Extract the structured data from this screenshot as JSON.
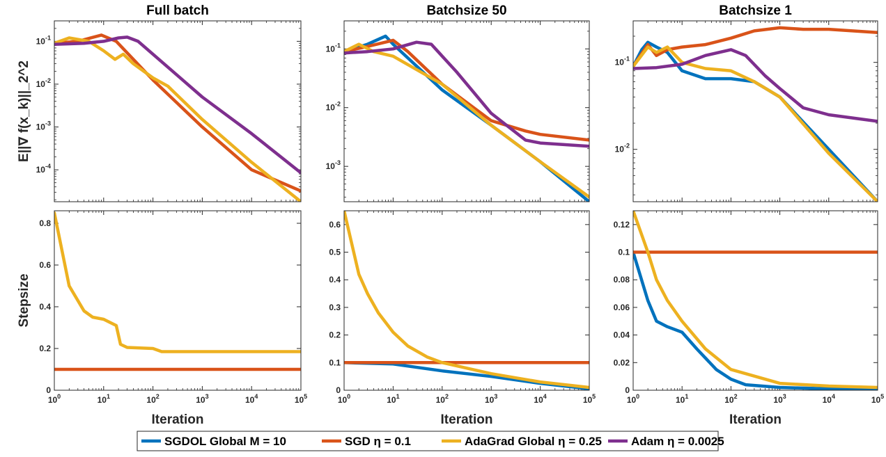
{
  "legend": [
    {
      "name": "SGDOL Global  M = 10",
      "color": "#0072BD"
    },
    {
      "name": "SGD  η = 0.1",
      "color": "#D95319"
    },
    {
      "name": "AdaGrad Global  η = 0.25",
      "color": "#EDB120"
    },
    {
      "name": "Adam  η = 0.0025",
      "color": "#7E2F8E"
    }
  ],
  "chart_data": [
    {
      "type": "line",
      "title": "Full batch",
      "xlabel": "",
      "ylabel": "E||∇ f(x_k)||_2^2",
      "xscale": "log",
      "yscale": "log",
      "xlim": [
        1,
        100000
      ],
      "ylim": [
        1.8e-05,
        0.3
      ],
      "yticks": [
        0.0001,
        0.001,
        0.01,
        0.1
      ],
      "ytick_labels": [
        "10^-4",
        "10^-3",
        "10^-2",
        "10^-1"
      ],
      "series": [
        {
          "name": "SGDOL Global  M = 10",
          "x": [],
          "y": []
        },
        {
          "name": "SGD  η = 0.1",
          "x": [
            1,
            3,
            9,
            18,
            100,
            1000,
            10000,
            100000
          ],
          "y": [
            0.09,
            0.1,
            0.14,
            0.1,
            0.0125,
            0.001,
            0.0001,
            3.2e-05
          ]
        },
        {
          "name": "AdaGrad Global  η = 0.25",
          "x": [
            1,
            2,
            5,
            10,
            17,
            25,
            40,
            100,
            200,
            1000,
            10000,
            100000
          ],
          "y": [
            0.09,
            0.12,
            0.1,
            0.06,
            0.038,
            0.05,
            0.03,
            0.014,
            0.009,
            0.0015,
            0.00015,
            1.8e-05
          ]
        },
        {
          "name": "Adam  η = 0.0025",
          "x": [
            1,
            4,
            10,
            20,
            30,
            50,
            100,
            1000,
            10000,
            100000
          ],
          "y": [
            0.085,
            0.09,
            0.1,
            0.12,
            0.125,
            0.1,
            0.05,
            0.005,
            0.0007,
            8.5e-05
          ]
        }
      ]
    },
    {
      "type": "line",
      "title": "Batchsize 50",
      "xlabel": "",
      "ylabel": "",
      "xscale": "log",
      "yscale": "log",
      "xlim": [
        1,
        100000
      ],
      "ylim": [
        0.00025,
        0.3
      ],
      "yticks": [
        0.001,
        0.01,
        0.1
      ],
      "ytick_labels": [
        "10^-3",
        "10^-2",
        "10^-1"
      ],
      "series": [
        {
          "name": "SGDOL Global  M = 10",
          "x": [
            1,
            3,
            7,
            10,
            20,
            100,
            1000,
            10000,
            100000
          ],
          "y": [
            0.09,
            0.12,
            0.165,
            0.12,
            0.07,
            0.02,
            0.005,
            0.0012,
            0.00025
          ]
        },
        {
          "name": "SGD  η = 0.1",
          "x": [
            1,
            3,
            10,
            20,
            100,
            1000,
            5000,
            10000,
            100000
          ],
          "y": [
            0.09,
            0.11,
            0.14,
            0.09,
            0.025,
            0.006,
            0.004,
            0.0035,
            0.0028
          ]
        },
        {
          "name": "AdaGrad Global  η = 0.25",
          "x": [
            1,
            2,
            4,
            10,
            100,
            1000,
            10000,
            100000
          ],
          "y": [
            0.09,
            0.12,
            0.09,
            0.075,
            0.025,
            0.005,
            0.0012,
            0.0003
          ]
        },
        {
          "name": "Adam  η = 0.0025",
          "x": [
            1,
            3,
            10,
            30,
            60,
            200,
            1000,
            5000,
            10000,
            100000
          ],
          "y": [
            0.085,
            0.09,
            0.1,
            0.13,
            0.12,
            0.04,
            0.008,
            0.0028,
            0.0025,
            0.0022
          ]
        }
      ]
    },
    {
      "type": "line",
      "title": "Batchsize 1",
      "xlabel": "",
      "ylabel": "",
      "xscale": "log",
      "yscale": "log",
      "xlim": [
        1,
        100000
      ],
      "ylim": [
        0.0025,
        0.3
      ],
      "yticks": [
        0.01,
        0.1
      ],
      "ytick_labels": [
        "10^-2",
        "10^-1"
      ],
      "series": [
        {
          "name": "SGDOL Global  M = 10",
          "x": [
            1,
            1.5,
            2,
            3,
            5,
            10,
            30,
            100,
            300,
            1000,
            10000,
            100000
          ],
          "y": [
            0.09,
            0.14,
            0.17,
            0.15,
            0.13,
            0.08,
            0.065,
            0.065,
            0.06,
            0.04,
            0.01,
            0.0025
          ]
        },
        {
          "name": "SGD  η = 0.1",
          "x": [
            1,
            2,
            3,
            5,
            10,
            30,
            100,
            300,
            1000,
            3000,
            10000,
            100000
          ],
          "y": [
            0.09,
            0.16,
            0.12,
            0.14,
            0.15,
            0.16,
            0.19,
            0.23,
            0.25,
            0.24,
            0.24,
            0.22
          ]
        },
        {
          "name": "AdaGrad Global  η = 0.25",
          "x": [
            1,
            2,
            3,
            5,
            10,
            30,
            100,
            300,
            1000,
            10000,
            100000
          ],
          "y": [
            0.09,
            0.15,
            0.13,
            0.15,
            0.1,
            0.085,
            0.08,
            0.06,
            0.04,
            0.009,
            0.0025
          ]
        },
        {
          "name": "Adam  η = 0.0025",
          "x": [
            1,
            3,
            10,
            30,
            100,
            200,
            500,
            1000,
            3000,
            10000,
            100000
          ],
          "y": [
            0.085,
            0.087,
            0.095,
            0.12,
            0.14,
            0.12,
            0.07,
            0.05,
            0.03,
            0.025,
            0.021
          ]
        }
      ]
    },
    {
      "type": "line",
      "title": "",
      "xlabel": "Iteration",
      "ylabel": "Stepsize",
      "xscale": "log",
      "yscale": "linear",
      "xlim": [
        1,
        100000
      ],
      "ylim": [
        0,
        0.86
      ],
      "yticks": [
        0,
        0.2,
        0.4,
        0.6,
        0.8
      ],
      "ytick_labels": [
        "0",
        "0.2",
        "0.4",
        "0.6",
        "0.8"
      ],
      "series": [
        {
          "name": "SGDOL Global  M = 10",
          "x": [],
          "y": []
        },
        {
          "name": "SGD  η = 0.1",
          "x": [
            1,
            100000
          ],
          "y": [
            0.1,
            0.1
          ]
        },
        {
          "name": "AdaGrad Global  η = 0.25",
          "x": [
            1,
            2,
            4,
            6,
            10,
            18,
            22,
            30,
            100,
            150,
            1000,
            100000
          ],
          "y": [
            0.85,
            0.5,
            0.38,
            0.35,
            0.34,
            0.31,
            0.22,
            0.205,
            0.2,
            0.185,
            0.185,
            0.185
          ]
        },
        {
          "name": "Adam  η = 0.0025",
          "x": [],
          "y": []
        }
      ]
    },
    {
      "type": "line",
      "title": "",
      "xlabel": "Iteration",
      "ylabel": "",
      "xscale": "log",
      "yscale": "linear",
      "xlim": [
        1,
        100000
      ],
      "ylim": [
        0,
        0.65
      ],
      "yticks": [
        0,
        0.1,
        0.2,
        0.3,
        0.4,
        0.5,
        0.6
      ],
      "ytick_labels": [
        "0",
        "0.1",
        "0.2",
        "0.3",
        "0.4",
        "0.5",
        "0.6"
      ],
      "series": [
        {
          "name": "SGDOL Global  M = 10",
          "x": [
            1,
            10,
            100,
            1000,
            10000,
            100000
          ],
          "y": [
            0.1,
            0.095,
            0.07,
            0.05,
            0.025,
            0.005
          ]
        },
        {
          "name": "SGD  η = 0.1",
          "x": [
            1,
            100000
          ],
          "y": [
            0.1,
            0.1
          ]
        },
        {
          "name": "AdaGrad Global  η = 0.25",
          "x": [
            1,
            2,
            3,
            5,
            10,
            20,
            50,
            100,
            1000,
            10000,
            100000
          ],
          "y": [
            0.65,
            0.42,
            0.35,
            0.28,
            0.21,
            0.16,
            0.12,
            0.1,
            0.06,
            0.03,
            0.01
          ]
        },
        {
          "name": "Adam  η = 0.0025",
          "x": [],
          "y": []
        }
      ]
    },
    {
      "type": "line",
      "title": "",
      "xlabel": "Iteration",
      "ylabel": "",
      "xscale": "log",
      "yscale": "linear",
      "xlim": [
        1,
        100000
      ],
      "ylim": [
        0,
        0.13
      ],
      "yticks": [
        0,
        0.02,
        0.04,
        0.06,
        0.08,
        0.1,
        0.12
      ],
      "ytick_labels": [
        "0",
        "0.02",
        "0.04",
        "0.06",
        "0.08",
        "0.1",
        "0.12"
      ],
      "series": [
        {
          "name": "SGDOL Global  M = 10",
          "x": [
            1,
            2,
            3,
            5,
            10,
            20,
            50,
            100,
            200,
            1000,
            10000,
            100000
          ],
          "y": [
            0.1,
            0.065,
            0.05,
            0.046,
            0.042,
            0.03,
            0.015,
            0.008,
            0.004,
            0.002,
            0.001,
            0.0005
          ]
        },
        {
          "name": "SGD  η = 0.1",
          "x": [
            1,
            100000
          ],
          "y": [
            0.1,
            0.1
          ]
        },
        {
          "name": "AdaGrad Global  η = 0.25",
          "x": [
            1,
            2,
            3,
            5,
            10,
            30,
            100,
            1000,
            10000,
            100000
          ],
          "y": [
            0.13,
            0.1,
            0.08,
            0.065,
            0.05,
            0.03,
            0.015,
            0.005,
            0.003,
            0.002
          ]
        },
        {
          "name": "Adam  η = 0.0025",
          "x": [],
          "y": []
        }
      ]
    }
  ],
  "xticks": [
    1,
    10,
    100,
    1000,
    10000,
    100000
  ]
}
